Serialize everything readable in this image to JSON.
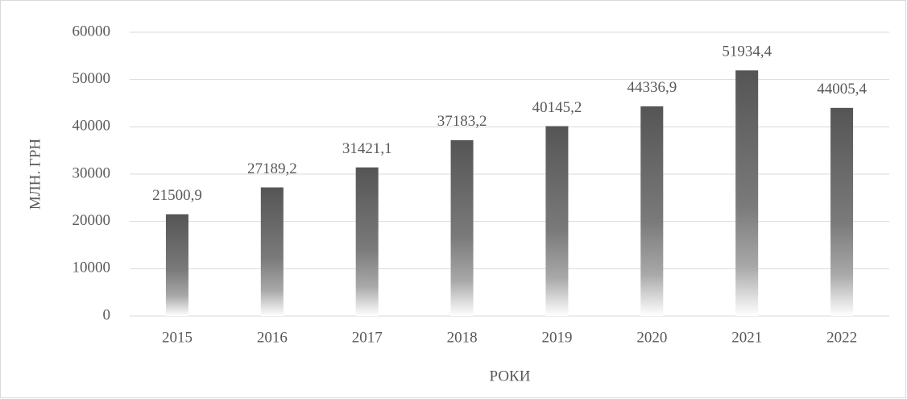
{
  "chart_data": {
    "type": "bar",
    "categories": [
      "2015",
      "2016",
      "2017",
      "2018",
      "2019",
      "2020",
      "2021",
      "2022"
    ],
    "values": [
      21500.9,
      27189.2,
      31421.1,
      37183.2,
      40145.2,
      44336.9,
      51934.4,
      44005.4
    ],
    "value_labels": [
      "21500,9",
      "27189,2",
      "31421,1",
      "37183,2",
      "40145,2",
      "44336,9",
      "51934,4",
      "44005,4"
    ],
    "color": "#555555",
    "ylim": [
      0,
      60000
    ],
    "yticks": [
      0,
      10000,
      20000,
      30000,
      40000,
      50000,
      60000
    ],
    "grid": true,
    "ylabel": "МЛН. ГРН",
    "xlabel": "РОКИ"
  }
}
